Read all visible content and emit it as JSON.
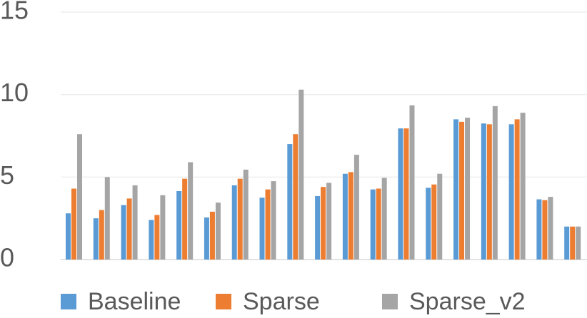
{
  "chart_data": {
    "type": "bar",
    "categories": [
      null,
      null,
      null,
      null,
      null,
      null,
      null,
      null,
      null,
      null,
      null,
      null,
      null,
      null,
      null,
      null,
      null,
      null,
      null
    ],
    "series": [
      {
        "name": "Baseline",
        "color": "#5b9bd5",
        "values": [
          2.8,
          2.5,
          3.3,
          2.4,
          4.15,
          2.55,
          4.5,
          3.75,
          7.0,
          3.85,
          5.2,
          4.25,
          7.95,
          4.35,
          8.5,
          8.25,
          8.2,
          3.65,
          2.0
        ]
      },
      {
        "name": "Sparse",
        "color": "#ed7d31",
        "values": [
          4.3,
          3.0,
          3.7,
          2.7,
          4.9,
          2.9,
          4.9,
          4.25,
          7.6,
          4.4,
          5.3,
          4.3,
          7.95,
          4.55,
          8.35,
          8.2,
          8.5,
          3.6,
          2.0
        ]
      },
      {
        "name": "Sparse_v2",
        "color": "#a5a5a5",
        "values": [
          7.6,
          5.0,
          4.5,
          3.9,
          5.9,
          3.45,
          5.45,
          4.75,
          10.3,
          4.65,
          6.35,
          4.95,
          9.35,
          5.2,
          8.6,
          9.3,
          8.9,
          3.8,
          2.0
        ]
      }
    ],
    "ylim": [
      0,
      15
    ],
    "yticks": [
      0,
      5,
      10,
      15
    ],
    "grid": true,
    "legend": "bottom"
  }
}
